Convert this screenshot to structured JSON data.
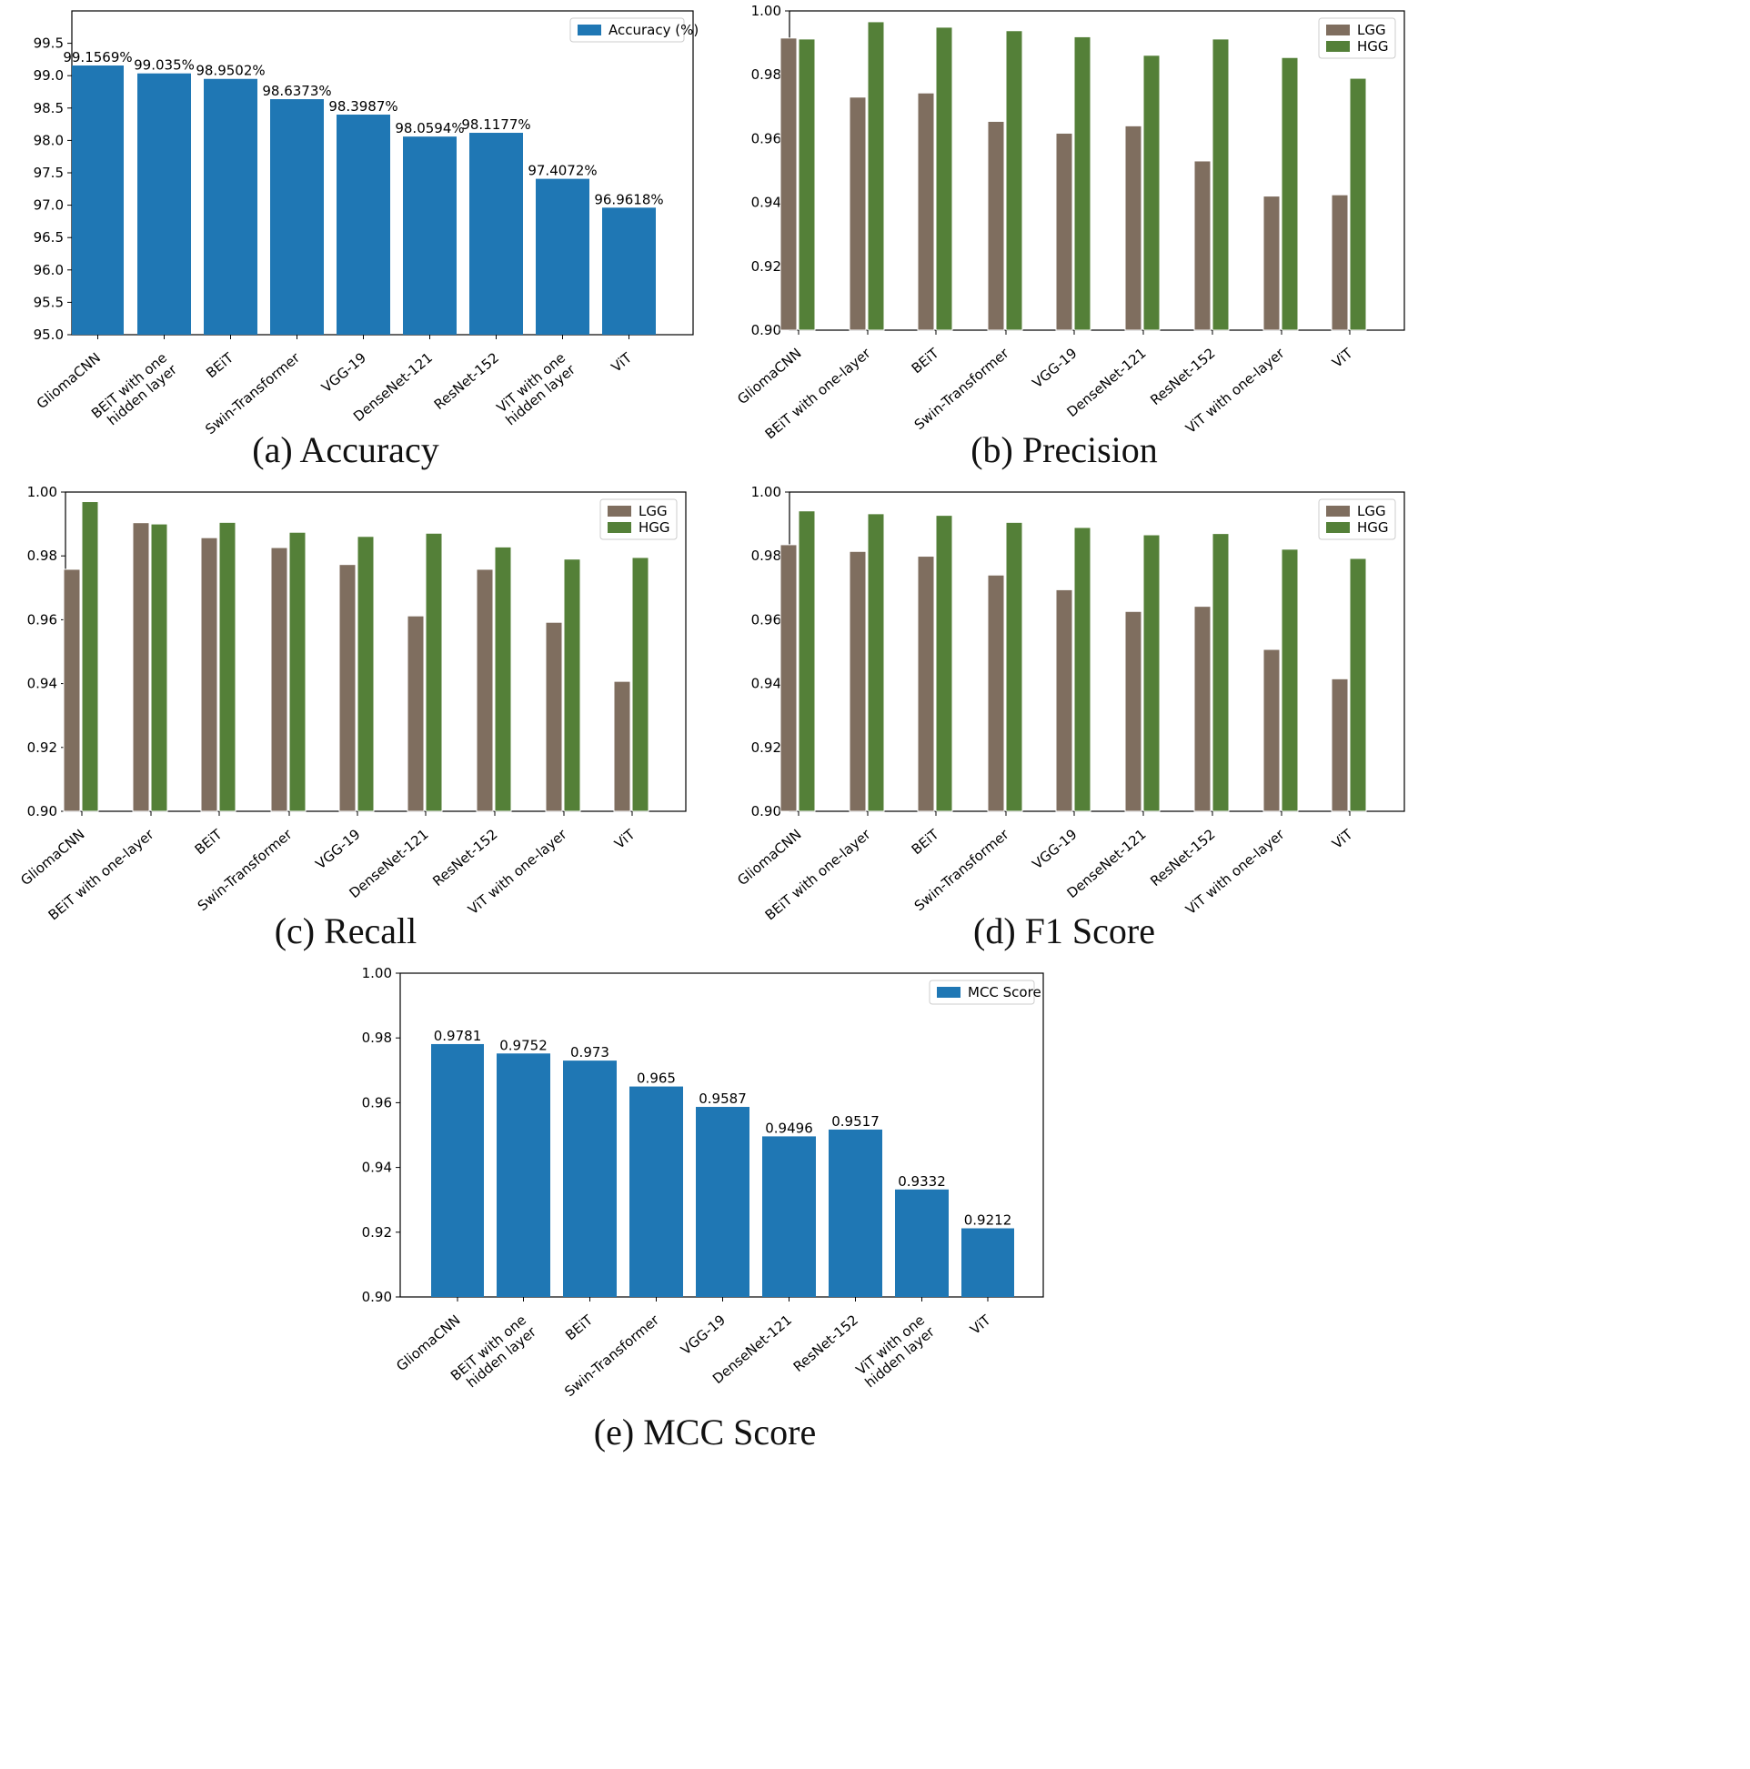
{
  "chart_data": [
    {
      "id": "accuracy",
      "type": "bar",
      "caption": "(a)  Accuracy",
      "categories": [
        "GliomaCNN",
        "BEiT with one\nhidden layer",
        "BEiT",
        "Swin-Transformer",
        "VGG-19",
        "DenseNet-121",
        "ResNet-152",
        "ViT with one\nhidden layer",
        "ViT"
      ],
      "series": [
        {
          "name": "Accuracy (%)",
          "color": "#1f77b4",
          "values": [
            99.1569,
            99.035,
            98.9502,
            98.6373,
            98.3987,
            98.0594,
            98.1177,
            97.4072,
            96.9618
          ],
          "labels": [
            "99.1569%",
            "99.035%",
            "98.9502%",
            "98.6373%",
            "98.3987%",
            "98.0594%",
            "98.1177%",
            "97.4072%",
            "96.9618%"
          ]
        }
      ],
      "ylim": [
        95.0,
        100.0
      ],
      "yticks": [
        "95.0",
        "95.5",
        "96.0",
        "96.5",
        "97.0",
        "97.5",
        "98.0",
        "98.5",
        "99.0",
        "99.5"
      ],
      "legend": "top-right"
    },
    {
      "id": "precision",
      "type": "bar",
      "caption": "(b)  Precision",
      "categories": [
        "GliomaCNN",
        "BEiT with one-layer",
        "BEiT",
        "Swin-Transformer",
        "VGG-19",
        "DenseNet-121",
        "ResNet-152",
        "ViT with one-layer",
        "ViT"
      ],
      "series": [
        {
          "name": "LGG",
          "color": "#7f6e5f",
          "values": [
            0.9915,
            0.973,
            0.9743,
            0.9654,
            0.9617,
            0.964,
            0.953,
            0.942,
            0.9424
          ]
        },
        {
          "name": "HGG",
          "color": "#548038",
          "values": [
            0.9912,
            0.9966,
            0.9949,
            0.9938,
            0.9919,
            0.9861,
            0.9912,
            0.9854,
            0.9789
          ]
        }
      ],
      "ylim": [
        0.9,
        1.0
      ],
      "yticks": [
        "0.90",
        "0.92",
        "0.94",
        "0.96",
        "0.98",
        "1.00"
      ],
      "legend": "top-right"
    },
    {
      "id": "recall",
      "type": "bar",
      "caption": "(c)  Recall",
      "categories": [
        "GliomaCNN",
        "BEiT with one-layer",
        "BEiT",
        "Swin-Transformer",
        "VGG-19",
        "DenseNet-121",
        "ResNet-152",
        "ViT with one-layer",
        "ViT"
      ],
      "series": [
        {
          "name": "LGG",
          "color": "#7f6e5f",
          "values": [
            0.9758,
            0.9904,
            0.9857,
            0.9826,
            0.9773,
            0.9612,
            0.9758,
            0.9592,
            0.9407
          ]
        },
        {
          "name": "HGG",
          "color": "#548038",
          "values": [
            0.997,
            0.99,
            0.9905,
            0.9874,
            0.9861,
            0.9871,
            0.9828,
            0.979,
            0.9795
          ]
        }
      ],
      "ylim": [
        0.9,
        1.0
      ],
      "yticks": [
        "0.90",
        "0.92",
        "0.94",
        "0.96",
        "0.98",
        "1.00"
      ],
      "legend": "top-right"
    },
    {
      "id": "f1",
      "type": "bar",
      "caption": "(d)  F1 Score",
      "categories": [
        "GliomaCNN",
        "BEiT with one-layer",
        "BEiT",
        "Swin-Transformer",
        "VGG-19",
        "DenseNet-121",
        "ResNet-152",
        "ViT with one-layer",
        "ViT"
      ],
      "series": [
        {
          "name": "LGG",
          "color": "#7f6e5f",
          "values": [
            0.9835,
            0.9814,
            0.9799,
            0.974,
            0.9694,
            0.9626,
            0.9642,
            0.9507,
            0.9415
          ]
        },
        {
          "name": "HGG",
          "color": "#548038",
          "values": [
            0.9941,
            0.9932,
            0.9927,
            0.9905,
            0.9889,
            0.9866,
            0.987,
            0.9821,
            0.9792
          ]
        }
      ],
      "ylim": [
        0.9,
        1.0
      ],
      "yticks": [
        "0.90",
        "0.92",
        "0.94",
        "0.96",
        "0.98",
        "1.00"
      ],
      "legend": "top-right"
    },
    {
      "id": "mcc",
      "type": "bar",
      "caption": "(e)  MCC Score",
      "categories": [
        "GliomaCNN",
        "BEiT with one\nhidden layer",
        "BEiT",
        "Swin-Transformer",
        "VGG-19",
        "DenseNet-121",
        "ResNet-152",
        "ViT with one\nhidden layer",
        "ViT"
      ],
      "series": [
        {
          "name": "MCC Score",
          "color": "#1f77b4",
          "values": [
            0.9781,
            0.9752,
            0.973,
            0.965,
            0.9587,
            0.9496,
            0.9517,
            0.9332,
            0.9212
          ],
          "labels": [
            "0.9781",
            "0.9752",
            "0.973",
            "0.965",
            "0.9587",
            "0.9496",
            "0.9517",
            "0.9332",
            "0.9212"
          ]
        }
      ],
      "ylim": [
        0.9,
        1.0
      ],
      "yticks": [
        "0.90",
        "0.92",
        "0.94",
        "0.96",
        "0.98",
        "1.00"
      ],
      "legend": "top-right"
    }
  ]
}
